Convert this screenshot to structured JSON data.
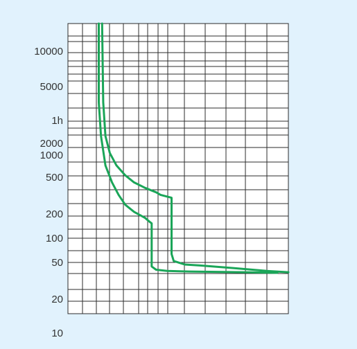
{
  "chart_data": {
    "type": "line",
    "title": "",
    "xlabel": "",
    "ylabel": "",
    "y_tick_labels": [
      "10000",
      "5000",
      "1h",
      "2000",
      "1000",
      "500",
      "200",
      "100",
      "50",
      "20",
      "10"
    ],
    "grid": true,
    "legend": "none",
    "series": [
      {
        "points": [
          [
            0.14,
            1000000
          ],
          [
            0.14,
            40000
          ],
          [
            0.15,
            10000
          ],
          [
            0.17,
            3000
          ],
          [
            0.2,
            1500
          ],
          [
            0.23,
            900
          ],
          [
            0.26,
            600
          ],
          [
            0.3,
            450
          ],
          [
            0.35,
            350
          ],
          [
            0.37,
            300
          ],
          [
            0.38,
            280
          ],
          [
            0.38,
            200
          ],
          [
            0.38,
            100
          ],
          [
            0.38,
            48
          ],
          [
            0.4,
            42
          ],
          [
            0.45,
            40
          ],
          [
            0.55,
            39
          ],
          [
            0.8,
            38
          ],
          [
            0.95,
            37
          ]
        ]
      },
      {
        "points": [
          [
            0.155,
            1000000
          ],
          [
            0.16,
            40000
          ],
          [
            0.17,
            10000
          ],
          [
            0.19,
            5000
          ],
          [
            0.22,
            3000
          ],
          [
            0.26,
            2000
          ],
          [
            0.3,
            1500
          ],
          [
            0.35,
            1200
          ],
          [
            0.4,
            1000
          ],
          [
            0.42,
            900
          ],
          [
            0.47,
            800
          ],
          [
            0.47,
            500
          ],
          [
            0.47,
            200
          ],
          [
            0.47,
            80
          ],
          [
            0.48,
            60
          ],
          [
            0.53,
            52
          ],
          [
            0.6,
            50
          ],
          [
            0.75,
            45
          ],
          [
            0.9,
            40
          ],
          [
            1.0,
            38
          ]
        ]
      }
    ],
    "colors": {
      "curve": "#1aa558",
      "grid": "#2b2b2b",
      "plot_bg": "#ffffff",
      "page_bg": "#e1f2fd",
      "text": "#333333"
    }
  }
}
